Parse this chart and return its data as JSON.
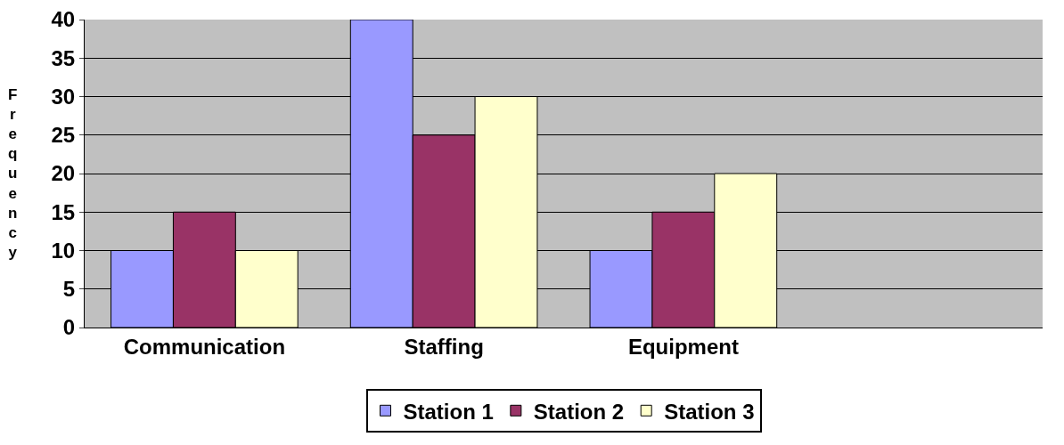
{
  "chart_data": {
    "type": "bar",
    "ylabel": "Frequency",
    "categories": [
      "Communication",
      "Staffing",
      "Equipment",
      null
    ],
    "series": [
      {
        "name": "Station 1",
        "color": "#9999ff",
        "values": [
          10,
          40,
          10,
          null
        ]
      },
      {
        "name": "Station 2",
        "color": "#993366",
        "values": [
          15,
          25,
          15,
          null
        ]
      },
      {
        "name": "Station 3",
        "color": "#ffffcc",
        "values": [
          10,
          30,
          20,
          null
        ]
      }
    ],
    "ylim": [
      0,
      40
    ],
    "yticks": [
      0,
      5,
      10,
      15,
      20,
      25,
      30,
      35,
      40
    ],
    "grid": "y",
    "legend": "bottom"
  }
}
